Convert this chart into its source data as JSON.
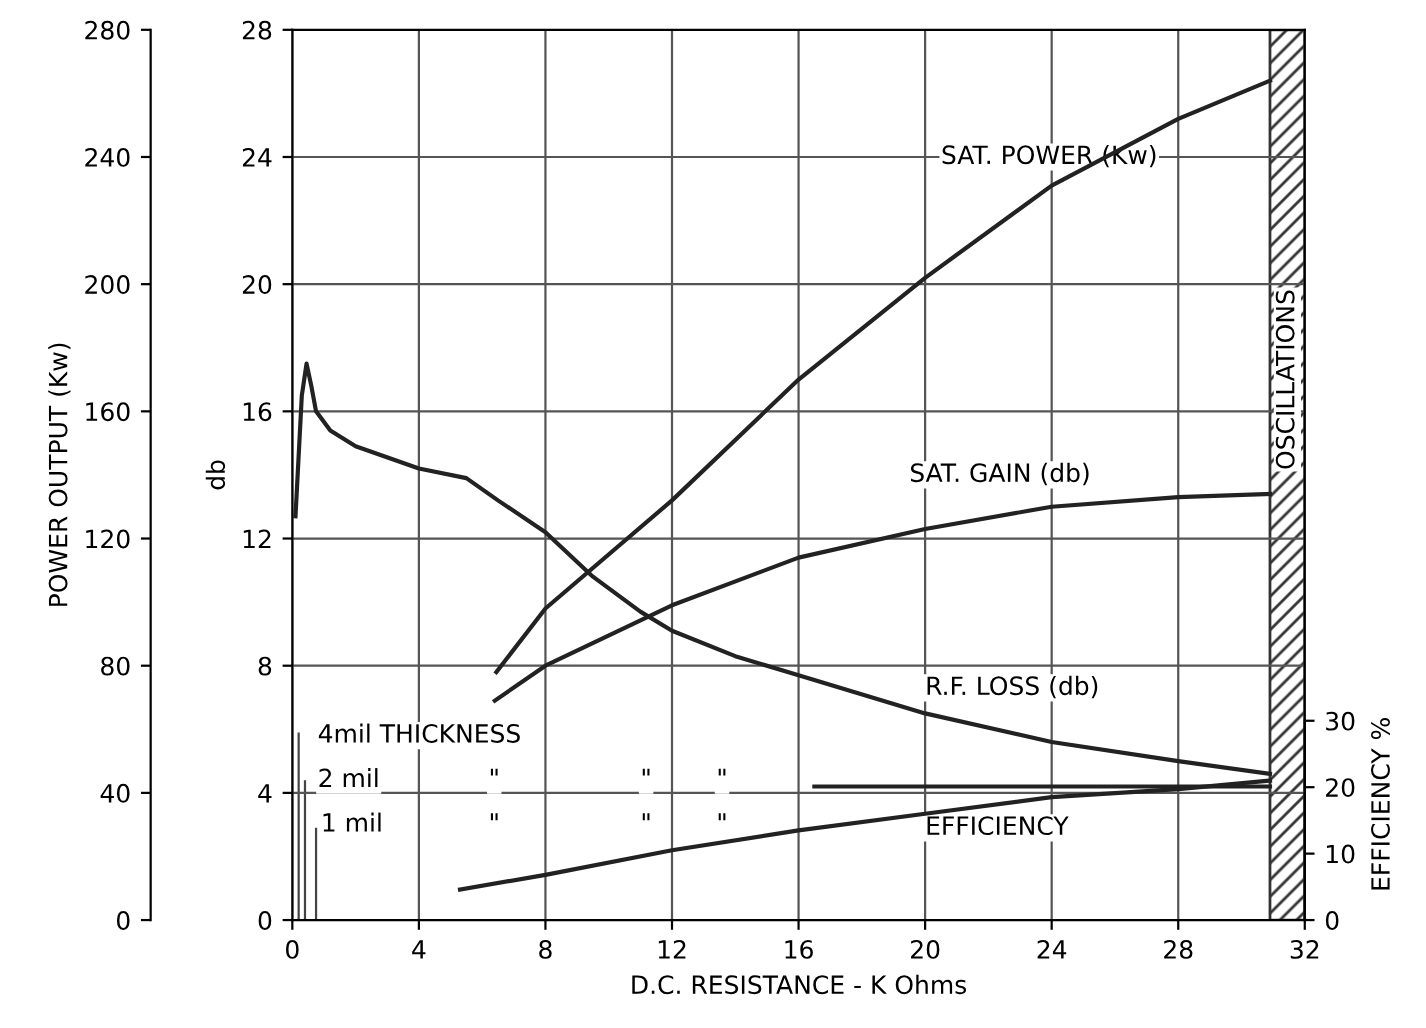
{
  "chart_data": {
    "type": "line",
    "xlabel": "D.C. RESISTANCE - K Ohms",
    "ylabel": "db",
    "y2label": "POWER OUTPUT (Kw)",
    "y3label": "EFFICIENCY %",
    "xlim": [
      0,
      32
    ],
    "xticks": [
      0,
      4,
      8,
      12,
      16,
      20,
      24,
      28,
      32
    ],
    "ylim": [
      0,
      28
    ],
    "yticks": [
      0,
      4,
      8,
      12,
      16,
      20,
      24,
      28
    ],
    "y2lim": [
      0,
      280
    ],
    "y2ticks": [
      0,
      40,
      80,
      120,
      160,
      200,
      240,
      280
    ],
    "y3lim": [
      0,
      134
    ],
    "y3ticks": [
      0,
      10,
      20,
      30
    ],
    "grid": true,
    "marker": "none",
    "line_style": "solid",
    "series": [
      {
        "color": "#222222",
        "axis": "y2",
        "x": [
          6.45,
          8,
          12,
          16,
          20,
          24,
          28,
          30.9
        ],
        "values": [
          78,
          98,
          132,
          170,
          202,
          231,
          252,
          264
        ]
      },
      {
        "color": "#222222",
        "x": [
          6.4,
          8,
          12,
          16,
          20,
          24,
          28,
          30.9
        ],
        "values": [
          6.9,
          8.0,
          9.9,
          11.4,
          12.3,
          13.0,
          13.3,
          13.4
        ]
      },
      {
        "color": "#222222",
        "x": [
          0.1,
          0.3,
          0.45,
          0.6,
          0.75,
          1.2,
          2,
          4,
          5.5,
          6.5,
          8,
          9.5,
          11,
          12,
          14,
          16,
          20,
          24,
          28,
          30.9
        ],
        "values": [
          12.7,
          16.5,
          17.5,
          16.8,
          16,
          15.4,
          14.9,
          14.2,
          13.9,
          13.2,
          12.2,
          10.8,
          9.7,
          9.1,
          8.3,
          7.7,
          6.5,
          5.6,
          5.0,
          4.6
        ]
      },
      {
        "color": "#222222",
        "axis": "y3",
        "x": [
          5.3,
          8,
          12,
          16,
          20,
          24,
          28,
          30.9
        ],
        "values": [
          4.6,
          6.8,
          10.5,
          13.5,
          16,
          18.5,
          19.7,
          21
        ]
      },
      {
        "color": "#222222",
        "x": [
          16.5,
          30.9
        ],
        "values": [
          4.2,
          4.2
        ]
      },
      {
        "type": "bar",
        "color": "#444444",
        "x": [
          0.2,
          0.4,
          0.75
        ],
        "values": [
          5.9,
          4.4,
          2.9
        ]
      }
    ],
    "bands": [
      {
        "axis": "x",
        "from": 30.9,
        "to": 32,
        "label": "OSCILLATIONS"
      }
    ],
    "annotations": [
      "SAT. POWER (Kw)",
      "SAT. GAIN (db)",
      "R.F. LOSS (db)",
      "EFFICIENCY",
      "4mil THICKNESS",
      "2 mil",
      "1 mil",
      "\"",
      "\"",
      "\"",
      "\"",
      "\"",
      "\""
    ]
  }
}
